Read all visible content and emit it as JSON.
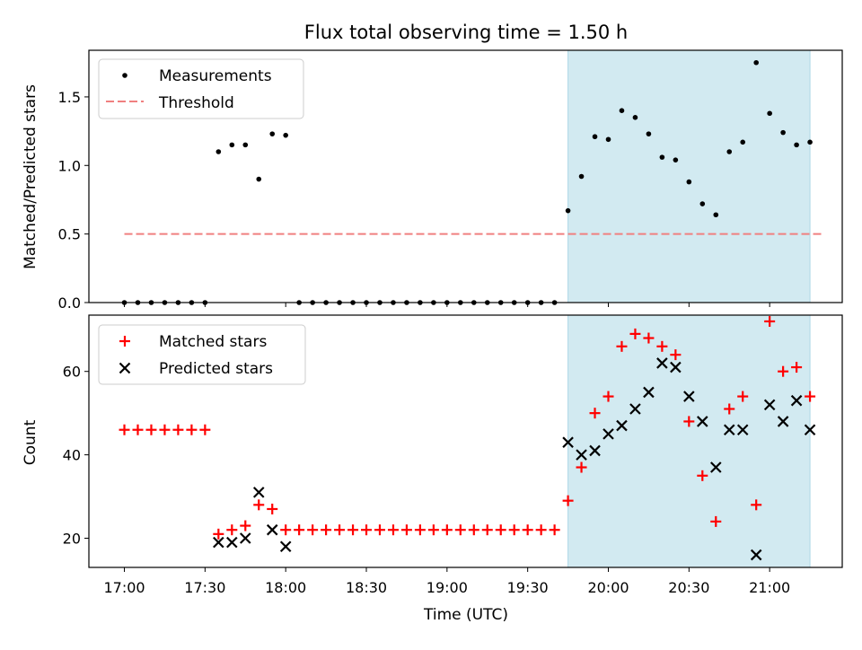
{
  "chart_data": {
    "title": "Flux total observing time = 1.50 h",
    "colors": {
      "measurement": "#000000",
      "threshold": "#f08080",
      "matched": "#ff0000",
      "predicted": "#000000",
      "observing_span": "#add8e6"
    },
    "observing_span_hours": [
      19.75,
      21.25
    ],
    "x_range_hours": [
      16.78,
      21.45
    ],
    "x_ticks": [
      {
        "value": 17.0,
        "label": "17:00"
      },
      {
        "value": 17.5,
        "label": "17:30"
      },
      {
        "value": 18.0,
        "label": "18:00"
      },
      {
        "value": 18.5,
        "label": "18:30"
      },
      {
        "value": 19.0,
        "label": "19:00"
      },
      {
        "value": 19.5,
        "label": "19:30"
      },
      {
        "value": 20.0,
        "label": "20:00"
      },
      {
        "value": 20.5,
        "label": "20:30"
      },
      {
        "value": 21.0,
        "label": "21:00"
      }
    ],
    "xlabel": "Time (UTC)",
    "top": {
      "type": "scatter",
      "ylabel": "Matched/Predicted stars",
      "ylim": [
        0.0,
        1.84
      ],
      "y_ticks": [
        {
          "value": 0.0,
          "label": "0.0"
        },
        {
          "value": 0.5,
          "label": "0.5"
        },
        {
          "value": 1.0,
          "label": "1.0"
        },
        {
          "value": 1.5,
          "label": "1.5"
        }
      ],
      "threshold": {
        "value": 0.5,
        "x_start": 17.0,
        "x_end": 21.33
      },
      "legend": {
        "position": "upper-left",
        "measurements_label": "Measurements",
        "threshold_label": "Threshold"
      },
      "x": [
        17.0,
        17.0833,
        17.1667,
        17.25,
        17.3333,
        17.4167,
        17.5,
        17.5833,
        17.6667,
        17.75,
        17.8333,
        17.9167,
        18.0,
        18.0833,
        18.1667,
        18.25,
        18.3333,
        18.4167,
        18.5,
        18.5833,
        18.6667,
        18.75,
        18.8333,
        18.9167,
        19.0,
        19.0833,
        19.1667,
        19.25,
        19.3333,
        19.4167,
        19.5,
        19.5833,
        19.6667,
        19.75,
        19.8333,
        19.9167,
        20.0,
        20.0833,
        20.1667,
        20.25,
        20.3333,
        20.4167,
        20.5,
        20.5833,
        20.6667,
        20.75,
        20.8333,
        20.9167,
        21.0,
        21.0833,
        21.1667,
        21.25
      ],
      "y": [
        0,
        0,
        0,
        0,
        0,
        0,
        0,
        1.1,
        1.15,
        1.15,
        0.9,
        1.23,
        1.22,
        0,
        0,
        0,
        0,
        0,
        0,
        0,
        0,
        0,
        0,
        0,
        0,
        0,
        0,
        0,
        0,
        0,
        0,
        0,
        0,
        0.67,
        0.92,
        1.21,
        1.19,
        1.4,
        1.35,
        1.23,
        1.06,
        1.04,
        0.88,
        0.72,
        0.64,
        1.1,
        1.17,
        1.75,
        1.38,
        1.24,
        1.15,
        1.17
      ]
    },
    "bottom": {
      "type": "scatter",
      "ylabel": "Count",
      "ylim": [
        13.0,
        73.5
      ],
      "y_ticks": [
        {
          "value": 20,
          "label": "20"
        },
        {
          "value": 40,
          "label": "40"
        },
        {
          "value": 60,
          "label": "60"
        }
      ],
      "legend": {
        "position": "upper-left",
        "matched_label": "Matched stars",
        "predicted_label": "Predicted stars"
      },
      "matched": {
        "x": [
          17.0,
          17.0833,
          17.1667,
          17.25,
          17.3333,
          17.4167,
          17.5,
          17.5833,
          17.6667,
          17.75,
          17.8333,
          17.9167,
          18.0,
          18.0833,
          18.1667,
          18.25,
          18.3333,
          18.4167,
          18.5,
          18.5833,
          18.6667,
          18.75,
          18.8333,
          18.9167,
          19.0,
          19.0833,
          19.1667,
          19.25,
          19.3333,
          19.4167,
          19.5,
          19.5833,
          19.6667,
          19.75,
          19.8333,
          19.9167,
          20.0,
          20.0833,
          20.1667,
          20.25,
          20.3333,
          20.4167,
          20.5,
          20.5833,
          20.6667,
          20.75,
          20.8333,
          20.9167,
          21.0,
          21.0833,
          21.1667,
          21.25
        ],
        "y": [
          46,
          46,
          46,
          46,
          46,
          46,
          46,
          21,
          22,
          23,
          28,
          27,
          22,
          22,
          22,
          22,
          22,
          22,
          22,
          22,
          22,
          22,
          22,
          22,
          22,
          22,
          22,
          22,
          22,
          22,
          22,
          22,
          22,
          29,
          37,
          50,
          54,
          66,
          69,
          68,
          66,
          64,
          48,
          35,
          24,
          51,
          54,
          28,
          72,
          60,
          61,
          54
        ]
      },
      "predicted": {
        "x": [
          17.5833,
          17.6667,
          17.75,
          17.8333,
          17.9167,
          18.0,
          19.75,
          19.8333,
          19.9167,
          20.0,
          20.0833,
          20.1667,
          20.25,
          20.3333,
          20.4167,
          20.5,
          20.5833,
          20.6667,
          20.75,
          20.8333,
          20.9167,
          21.0,
          21.0833,
          21.1667,
          21.25
        ],
        "y": [
          19,
          19,
          20,
          31,
          22,
          18,
          43,
          40,
          41,
          45,
          47,
          51,
          55,
          62,
          61,
          54,
          48,
          37,
          46,
          46,
          16,
          52,
          48,
          53,
          46
        ]
      }
    }
  }
}
